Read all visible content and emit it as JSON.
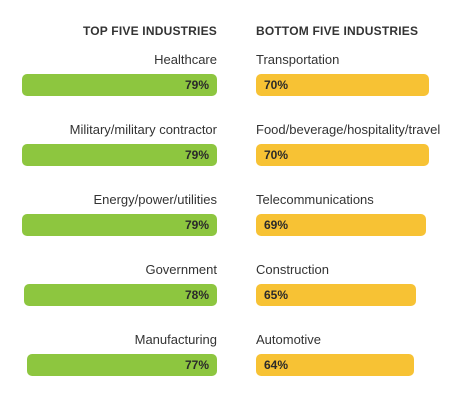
{
  "chart_data": [
    {
      "type": "bar",
      "orientation": "horizontal",
      "title": "TOP FIVE INDUSTRIES",
      "categories": [
        "Healthcare",
        "Military/military contractor",
        "Energy/power/utilities",
        "Government",
        "Manufacturing"
      ],
      "values": [
        79,
        79,
        79,
        78,
        77
      ],
      "value_labels": [
        "79%",
        "79%",
        "79%",
        "78%",
        "77%"
      ],
      "bar_color": "#8dc63f",
      "bar_direction": "right-aligned",
      "xlim": [
        0,
        100
      ]
    },
    {
      "type": "bar",
      "orientation": "horizontal",
      "title": "BOTTOM FIVE INDUSTRIES",
      "categories": [
        "Transportation",
        "Food/beverage/hospitality/travel",
        "Telecommunications",
        "Construction",
        "Automotive"
      ],
      "values": [
        70,
        70,
        69,
        65,
        64
      ],
      "value_labels": [
        "70%",
        "70%",
        "69%",
        "65%",
        "64%"
      ],
      "bar_color": "#f7c234",
      "bar_direction": "left-aligned",
      "xlim": [
        0,
        100
      ]
    }
  ]
}
